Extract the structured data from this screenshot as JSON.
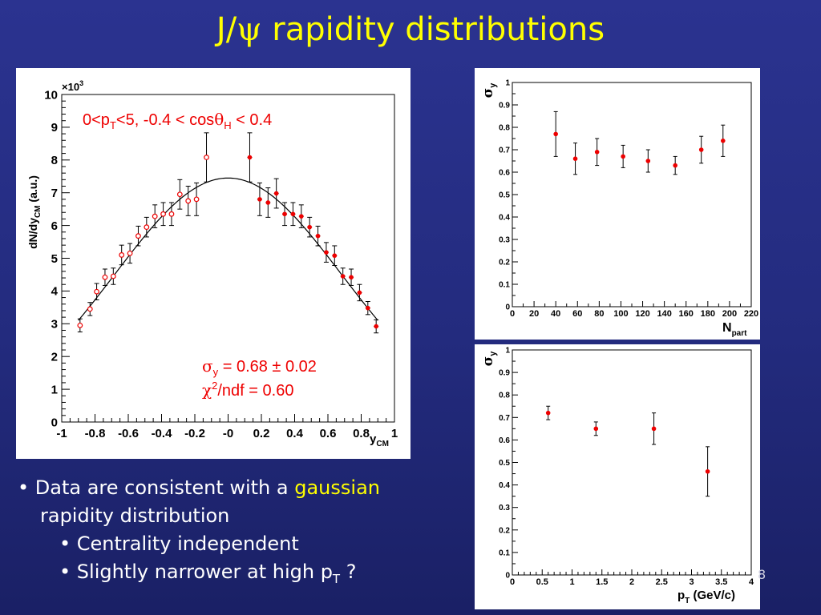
{
  "title_prefix": "J/",
  "title_symbol": "ψ",
  "title_suffix": " rapidity distributions",
  "slide_number": "8",
  "bullets": {
    "b1_pre": "• Data are consistent with a ",
    "b1_highlight": "gaussian",
    "b1_cont": "rapidity distribution",
    "b2": "• Centrality independent",
    "b3_pre": "• Slightly narrower at high p",
    "b3_sub": "T",
    "b3_post": " ?"
  },
  "colors": {
    "highlight": "#ffff00",
    "marker": "#ee0000",
    "annotation": "#ee0000",
    "background": "#252c80"
  },
  "chart_data": [
    {
      "type": "scatter",
      "xlabel_main": "y",
      "xlabel_sub": "CM",
      "ylabel_main": "dN/dy",
      "ylabel_sub": "CM",
      "ylabel_unit": " (a.u.)",
      "y_multiplier_base": "×10",
      "y_multiplier_exp": "3",
      "xlim": [
        -1,
        1
      ],
      "ylim": [
        0,
        10
      ],
      "xticks": [
        "-1",
        "-0.8",
        "-0.6",
        "-0.4",
        "-0.2",
        "-0",
        "0.2",
        "0.4",
        "0.6",
        "0.8",
        "1"
      ],
      "yticks": [
        "0",
        "1",
        "2",
        "3",
        "4",
        "5",
        "6",
        "7",
        "8",
        "9",
        "10"
      ],
      "selection": {
        "p1": "0<p",
        "s1": "T",
        "p2": "<5, -0.4 < cos",
        "theta": "θ",
        "s2": "H",
        "p3": " < 0.4"
      },
      "fit_text": {
        "sigma": "σ",
        "sigma_sub": "y",
        "sigma_rest": " = 0.68 ± 0.02",
        "chi": "χ",
        "chi_sup": "2",
        "chi_rest": "/ndf = 0.60"
      },
      "fit": {
        "amplitude": 7.45,
        "mean": 0.0,
        "sigma": 0.68,
        "range": [
          -0.9,
          0.9
        ]
      },
      "series": [
        {
          "marker": "open",
          "points": [
            {
              "x": -0.89,
              "y": 2.95,
              "err": 0.2
            },
            {
              "x": -0.83,
              "y": 3.45,
              "err": 0.2
            },
            {
              "x": -0.79,
              "y": 3.98,
              "err": 0.25
            },
            {
              "x": -0.74,
              "y": 4.42,
              "err": 0.25
            },
            {
              "x": -0.69,
              "y": 4.45,
              "err": 0.25
            },
            {
              "x": -0.64,
              "y": 5.1,
              "err": 0.3
            },
            {
              "x": -0.59,
              "y": 5.15,
              "err": 0.3
            },
            {
              "x": -0.54,
              "y": 5.68,
              "err": 0.3
            },
            {
              "x": -0.49,
              "y": 5.95,
              "err": 0.3
            },
            {
              "x": -0.44,
              "y": 6.28,
              "err": 0.35
            },
            {
              "x": -0.39,
              "y": 6.35,
              "err": 0.35
            },
            {
              "x": -0.34,
              "y": 6.35,
              "err": 0.35
            },
            {
              "x": -0.29,
              "y": 6.95,
              "err": 0.45
            },
            {
              "x": -0.24,
              "y": 6.75,
              "err": 0.45
            },
            {
              "x": -0.19,
              "y": 6.8,
              "err": 0.5
            },
            {
              "x": -0.13,
              "y": 8.08,
              "err": 0.75
            }
          ]
        },
        {
          "marker": "filled",
          "points": [
            {
              "x": 0.13,
              "y": 8.08,
              "err": 0.75
            },
            {
              "x": 0.19,
              "y": 6.8,
              "err": 0.5
            },
            {
              "x": 0.24,
              "y": 6.7,
              "err": 0.45
            },
            {
              "x": 0.29,
              "y": 6.98,
              "err": 0.45
            },
            {
              "x": 0.34,
              "y": 6.35,
              "err": 0.35
            },
            {
              "x": 0.39,
              "y": 6.35,
              "err": 0.35
            },
            {
              "x": 0.44,
              "y": 6.28,
              "err": 0.35
            },
            {
              "x": 0.49,
              "y": 5.95,
              "err": 0.3
            },
            {
              "x": 0.54,
              "y": 5.68,
              "err": 0.3
            },
            {
              "x": 0.59,
              "y": 5.18,
              "err": 0.3
            },
            {
              "x": 0.64,
              "y": 5.08,
              "err": 0.3
            },
            {
              "x": 0.69,
              "y": 4.45,
              "err": 0.25
            },
            {
              "x": 0.74,
              "y": 4.42,
              "err": 0.25
            },
            {
              "x": 0.79,
              "y": 3.95,
              "err": 0.25
            },
            {
              "x": 0.84,
              "y": 3.48,
              "err": 0.2
            },
            {
              "x": 0.89,
              "y": 2.92,
              "err": 0.2
            }
          ]
        }
      ]
    },
    {
      "type": "scatter",
      "xlabel_main": "N",
      "xlabel_sub": "part",
      "ylabel_main": "σ",
      "ylabel_sub": "y",
      "xlim": [
        0,
        220
      ],
      "ylim": [
        0,
        1
      ],
      "xticks": [
        "0",
        "20",
        "40",
        "60",
        "80",
        "100",
        "120",
        "140",
        "160",
        "180",
        "200",
        "220"
      ],
      "yticks": [
        "0",
        "0.1",
        "0.2",
        "0.3",
        "0.4",
        "0.5",
        "0.6",
        "0.7",
        "0.8",
        "0.9",
        "1"
      ],
      "series": [
        {
          "marker": "filled",
          "points": [
            {
              "x": 40,
              "y": 0.77,
              "err": 0.1
            },
            {
              "x": 58,
              "y": 0.66,
              "err": 0.07
            },
            {
              "x": 78,
              "y": 0.69,
              "err": 0.06
            },
            {
              "x": 102,
              "y": 0.67,
              "err": 0.05
            },
            {
              "x": 125,
              "y": 0.65,
              "err": 0.05
            },
            {
              "x": 150,
              "y": 0.63,
              "err": 0.04
            },
            {
              "x": 174,
              "y": 0.7,
              "err": 0.06
            },
            {
              "x": 194,
              "y": 0.74,
              "err": 0.07
            }
          ]
        }
      ]
    },
    {
      "type": "scatter",
      "xlabel_main": "p",
      "xlabel_sub": "T",
      "xlabel_unit": " (GeV/c)",
      "ylabel_main": "σ",
      "ylabel_sub": "y",
      "xlim": [
        0,
        4
      ],
      "ylim": [
        0,
        1
      ],
      "xticks": [
        "0",
        "0.5",
        "1",
        "1.5",
        "2",
        "2.5",
        "3",
        "3.5",
        "4"
      ],
      "yticks": [
        "0",
        "0.1",
        "0.2",
        "0.3",
        "0.4",
        "0.5",
        "0.6",
        "0.7",
        "0.8",
        "0.9",
        "1"
      ],
      "series": [
        {
          "marker": "filled",
          "points": [
            {
              "x": 0.6,
              "y": 0.72,
              "err": 0.03
            },
            {
              "x": 1.4,
              "y": 0.65,
              "err": 0.03
            },
            {
              "x": 2.37,
              "y": 0.65,
              "err": 0.07
            },
            {
              "x": 3.27,
              "y": 0.46,
              "err": 0.11
            }
          ]
        }
      ]
    }
  ]
}
